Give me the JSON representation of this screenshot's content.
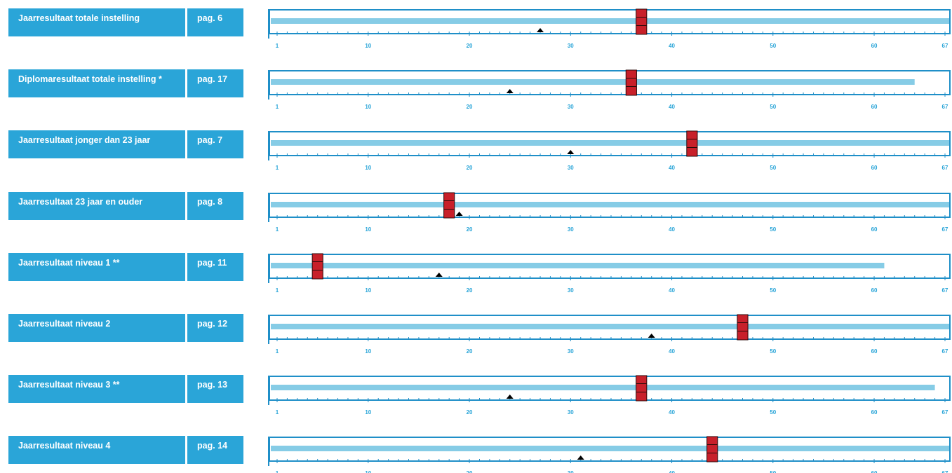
{
  "chart_data": {
    "type": "bar",
    "x_axis": {
      "min": 1,
      "max": 67,
      "tick_labels": [
        1,
        10,
        20,
        30,
        40,
        50,
        60,
        67
      ]
    },
    "colors": {
      "label_bg": "#2aa5d8",
      "bar": "#86cce6",
      "frame": "#1f8fc8",
      "marker": "#c8202a",
      "triangle": "#000000"
    },
    "rows": [
      {
        "label": "Jaarresultaat totale instelling",
        "page": "pag. 6",
        "bar_end": 67,
        "marker": 37,
        "triangle": 27
      },
      {
        "label": "Diplomaresultaat totale instelling *",
        "page": "pag. 17",
        "bar_end": 64,
        "marker": 36,
        "triangle": 24
      },
      {
        "label": "Jaarresultaat jonger dan 23 jaar",
        "page": "pag. 7",
        "bar_end": 67,
        "marker": 42,
        "triangle": 30
      },
      {
        "label": "Jaarresultaat 23 jaar en ouder",
        "page": "pag. 8",
        "bar_end": 67,
        "marker": 18,
        "triangle": 19
      },
      {
        "label": "Jaarresultaat niveau 1 **",
        "page": "pag. 11",
        "bar_end": 61,
        "marker": 5,
        "triangle": 17
      },
      {
        "label": "Jaarresultaat niveau 2",
        "page": "pag. 12",
        "bar_end": 67,
        "marker": 47,
        "triangle": 38
      },
      {
        "label": "Jaarresultaat niveau 3 **",
        "page": "pag. 13",
        "bar_end": 66,
        "marker": 37,
        "triangle": 24
      },
      {
        "label": "Jaarresultaat niveau 4",
        "page": "pag. 14",
        "bar_end": 67,
        "marker": 44,
        "triangle": 31
      }
    ]
  }
}
